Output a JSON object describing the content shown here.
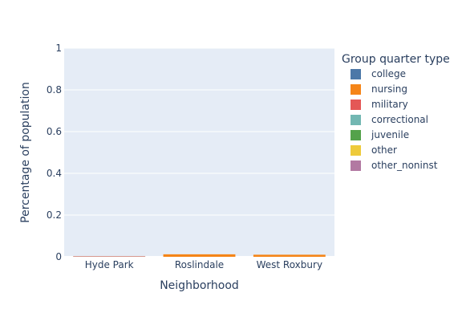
{
  "chart_data": {
    "type": "bar",
    "stacked": true,
    "xlabel": "Neighborhood",
    "ylabel": "Percentage of population",
    "ylim": [
      0,
      1
    ],
    "y_ticks": [
      "0",
      "0.2",
      "0.4",
      "0.6",
      "0.8",
      "1"
    ],
    "grid": true,
    "legend_title": "Group quarter type",
    "legend_position": "right",
    "categories": [
      "Hyde Park",
      "Roslindale",
      "West Roxbury"
    ],
    "series": [
      {
        "name": "college",
        "color": "#4c78a8",
        "values": [
          0.0,
          0.0,
          0.0
        ]
      },
      {
        "name": "nursing",
        "color": "#f58518",
        "values": [
          0.002,
          0.012,
          0.01
        ]
      },
      {
        "name": "military",
        "color": "#e45756",
        "values": [
          0.0,
          0.0,
          0.0
        ]
      },
      {
        "name": "correctional",
        "color": "#72b7b2",
        "values": [
          0.0,
          0.0,
          0.0
        ]
      },
      {
        "name": "juvenile",
        "color": "#54a24b",
        "values": [
          0.0,
          0.0,
          0.0
        ]
      },
      {
        "name": "other",
        "color": "#eeca3b",
        "values": [
          0.0,
          0.0,
          0.0
        ]
      },
      {
        "name": "other_noninst",
        "color": "#b279a2",
        "values": [
          0.001,
          0.0,
          0.0
        ]
      }
    ]
  }
}
